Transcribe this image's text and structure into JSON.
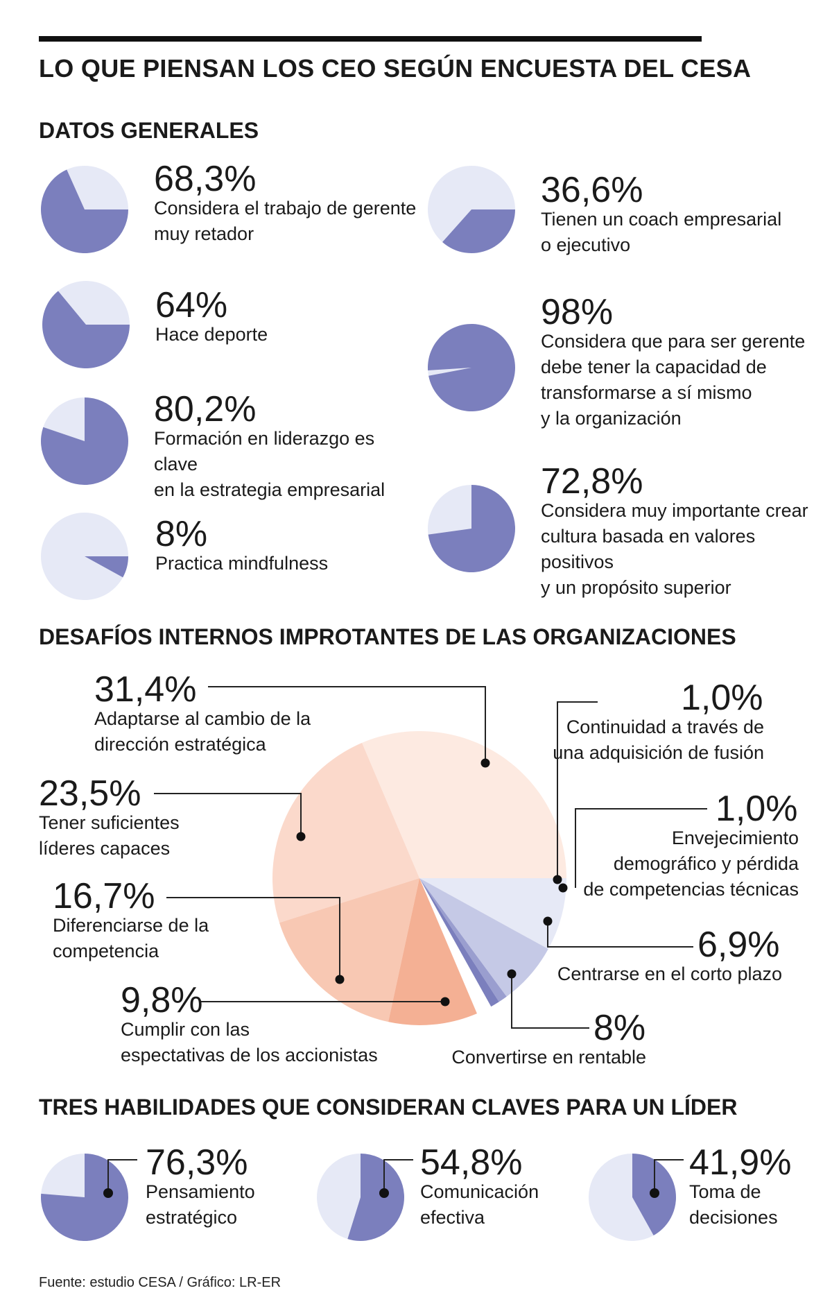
{
  "title": "LO QUE PIENSAN LOS CEO SEGÚN ENCUESTA DEL CESA",
  "sections": {
    "general": "DATOS GENERALES",
    "challenges": "DESAFÍOS INTERNOS IMPROTANTES DE LAS ORGANIZACIONES",
    "skills": "TRES HABILIDADES QUE CONSIDERAN CLAVES PARA UN LÍDER"
  },
  "source": "Fuente: estudio CESA / Gráfico: LR-ER",
  "colors": {
    "accent": "#7b7fbd",
    "light": "#e6e9f6",
    "challenge_slices": [
      "#fdeae1",
      "#fbd9cb",
      "#f8c8b3",
      "#f4b094",
      "#e6e9f6",
      "#c5c9e6",
      "#9a9ecf",
      "#7b7fbd"
    ]
  },
  "chart_data": [
    {
      "type": "pie",
      "id": "datos-generales",
      "title": "DATOS GENERALES",
      "items": [
        {
          "value_label": "68,3%",
          "value": 68.3,
          "label": "Considera el trabajo de gerente\nmuy retador"
        },
        {
          "value_label": "64%",
          "value": 64,
          "label": "Hace deporte"
        },
        {
          "value_label": "80,2%",
          "value": 80.2,
          "label": "Formación en liderazgo es clave\nen la estrategia empresarial"
        },
        {
          "value_label": "8%",
          "value": 8,
          "label": "Practica mindfulness"
        },
        {
          "value_label": "36,6%",
          "value": 36.6,
          "label": "Tienen un coach empresarial\no ejecutivo"
        },
        {
          "value_label": "98%",
          "value": 98,
          "label": "Considera que para ser gerente\ndebe tener la capacidad de\ntransformarse a sí mismo\ny la organización"
        },
        {
          "value_label": "72,8%",
          "value": 72.8,
          "label": "Considera muy importante crear\ncultura basada en valores positivos\ny un propósito superior"
        }
      ]
    },
    {
      "type": "pie",
      "id": "desafios",
      "title": "DESAFÍOS INTERNOS IMPROTANTES DE LAS ORGANIZACIONES",
      "slices": [
        {
          "value_label": "31,4%",
          "value": 31.4,
          "label": "Adaptarse al cambio de la\ndirección estratégica"
        },
        {
          "value_label": "23,5%",
          "value": 23.5,
          "label": "Tener suficientes\nlíderes capaces"
        },
        {
          "value_label": "16,7%",
          "value": 16.7,
          "label": "Diferenciarse de la\ncompetencia"
        },
        {
          "value_label": "9,8%",
          "value": 9.8,
          "label": "Cumplir con las\nespectativas de los accionistas"
        },
        {
          "value_label": "8%",
          "value": 8,
          "label": "Convertirse en rentable"
        },
        {
          "value_label": "6,9%",
          "value": 6.9,
          "label": "Centrarse en el corto plazo"
        },
        {
          "value_label": "1,0%",
          "value": 1.0,
          "label": "Envejecimiento\ndemográfico y pérdida\nde competencias técnicas"
        },
        {
          "value_label": "1,0%",
          "value": 1.0,
          "label": "Continuidad a través de\nuna adquisición de fusión"
        }
      ]
    },
    {
      "type": "pie",
      "id": "habilidades",
      "title": "TRES HABILIDADES QUE CONSIDERAN CLAVES PARA UN LÍDER",
      "items": [
        {
          "value_label": "76,3%",
          "value": 76.3,
          "label": "Pensamiento\nestratégico"
        },
        {
          "value_label": "54,8%",
          "value": 54.8,
          "label": "Comunicación\nefectiva"
        },
        {
          "value_label": "41,9%",
          "value": 41.9,
          "label": "Toma de\ndecisiones"
        }
      ]
    }
  ]
}
